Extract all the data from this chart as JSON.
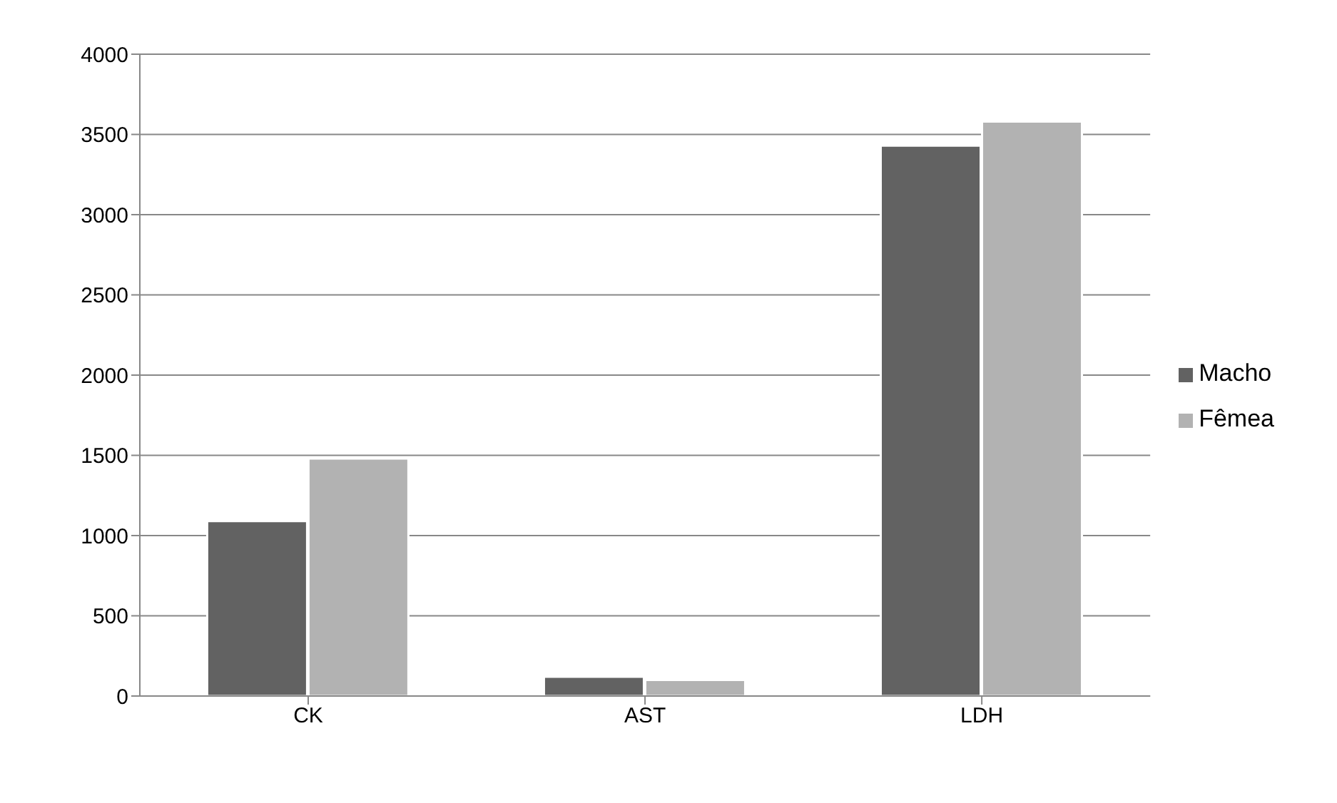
{
  "chart_data": {
    "type": "bar",
    "categories": [
      "CK",
      "AST",
      "LDH"
    ],
    "series": [
      {
        "name": "Macho",
        "color": "#626262",
        "values": [
          1090,
          120,
          3430
        ]
      },
      {
        "name": "Fêmea",
        "color": "#b2b2b2",
        "values": [
          1480,
          100,
          3580
        ]
      }
    ],
    "ylim": [
      0,
      4000
    ],
    "yticks": [
      0,
      500,
      1000,
      1500,
      2000,
      2500,
      3000,
      3500,
      4000
    ],
    "grid": "y",
    "legend": "right"
  }
}
